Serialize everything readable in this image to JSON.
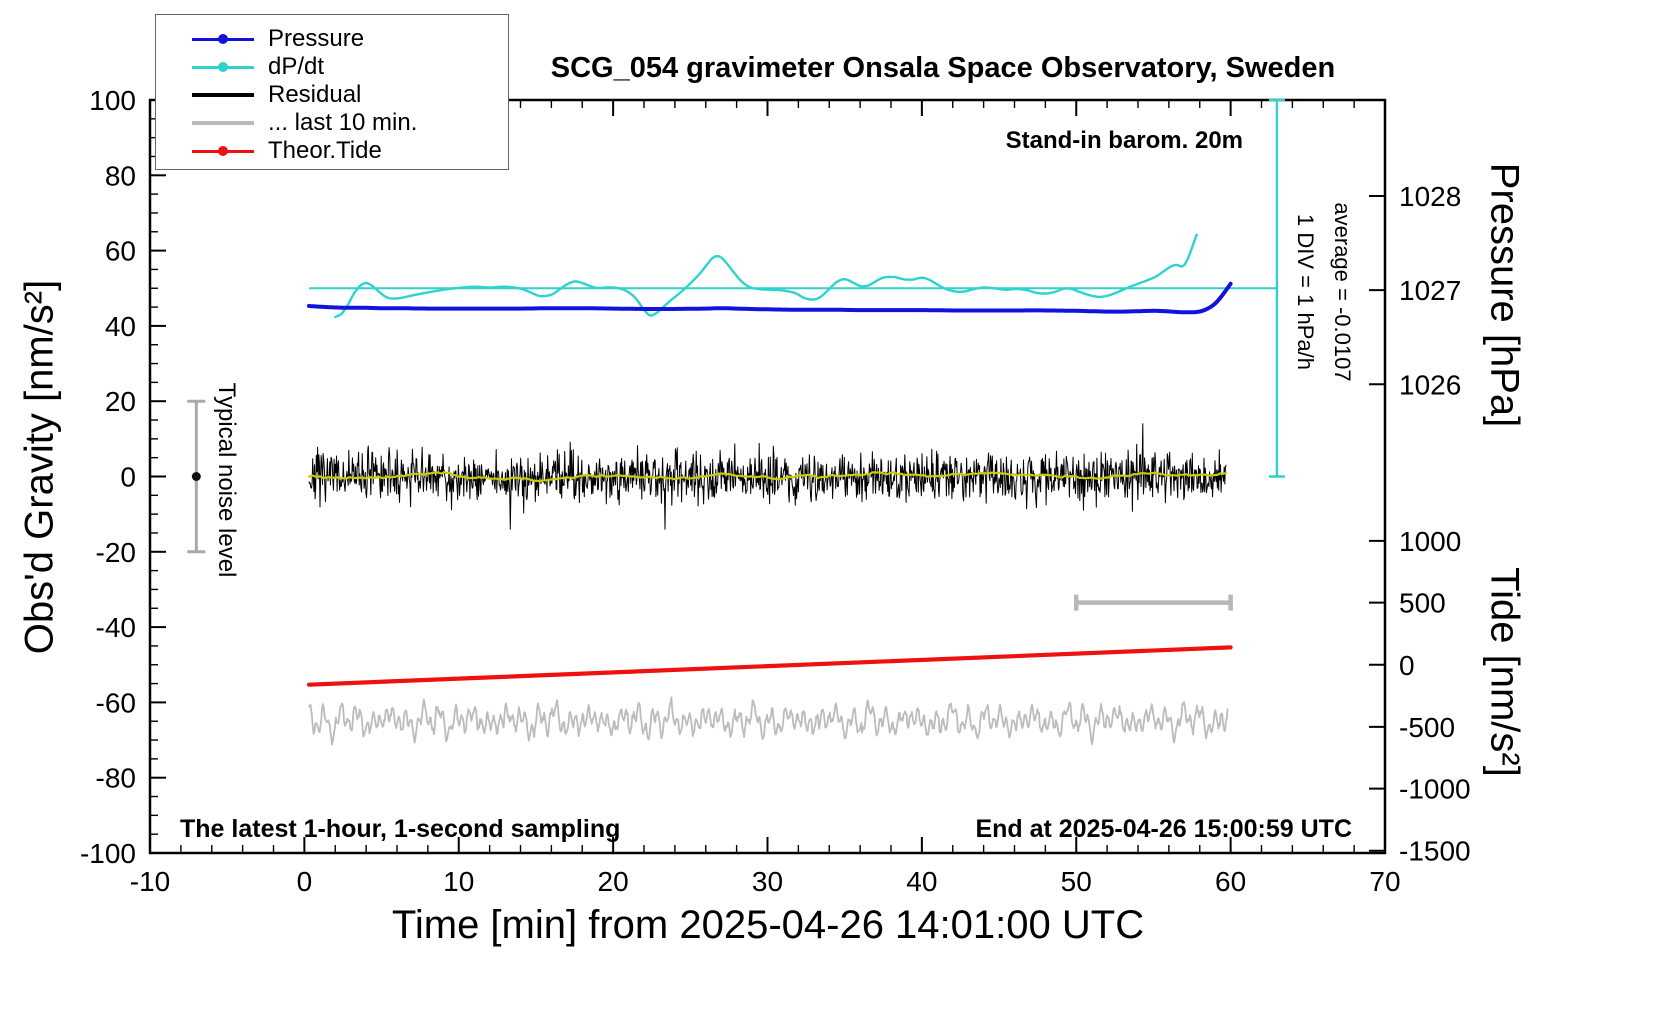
{
  "title": "SCG_054 gravimeter Onsala Space Observatory, Sweden",
  "annotations": {
    "barometer": "Stand-in barom. 20m",
    "sampling": "The latest 1-hour, 1-second sampling",
    "end_time": "End at 2025-04-26 15:00:59 UTC",
    "div_scale": "1 DIV = 1 hPa/h",
    "average": "average = -0.0107",
    "noise_label": "Typical noise level"
  },
  "axes": {
    "x": {
      "label": "Time [min] from 2025-04-26 14:01:00 UTC",
      "min": -10,
      "max": 70,
      "major_ticks": [
        -10,
        0,
        10,
        20,
        30,
        40,
        50,
        60,
        70
      ],
      "minor_step": 2
    },
    "y_left": {
      "label": "Obs'd Gravity [nm/s²]",
      "min": -100,
      "max": 100,
      "major_ticks": [
        -100,
        -80,
        -60,
        -40,
        -20,
        0,
        20,
        40,
        60,
        80,
        100
      ],
      "minor_step": 5
    },
    "y_right_pressure": {
      "label": "Pressure [hPa]",
      "ticks": [
        {
          "value": "1028",
          "g": 74.5
        },
        {
          "value": "1027",
          "g": 49.5
        },
        {
          "value": "1026",
          "g": 24.5
        }
      ]
    },
    "y_right_tide": {
      "label": "Tide [nm/s²]",
      "ticks": [
        {
          "value": "1000",
          "g": -17.1
        },
        {
          "value": "500",
          "g": -33.5
        },
        {
          "value": "0",
          "g": -50.0
        },
        {
          "value": "-500",
          "g": -66.5
        },
        {
          "value": "-1000",
          "g": -82.9
        },
        {
          "value": "-1500",
          "g": -99.4
        }
      ]
    }
  },
  "legend": {
    "items": [
      {
        "label": "Pressure",
        "color": "#1212dd",
        "dot": true,
        "thick": false
      },
      {
        "label": "dP/dt",
        "color": "#2ed3cd",
        "dot": true,
        "thick": false
      },
      {
        "label": "Residual",
        "color": "#000000",
        "dot": false,
        "thick": true
      },
      {
        "label": "... last 10 min.",
        "color": "#b9b9b9",
        "dot": false,
        "thick": true
      },
      {
        "label": "Theor.Tide",
        "color": "#ee1111",
        "dot": true,
        "thick": false
      }
    ]
  },
  "chart_data": {
    "type": "line",
    "title": "SCG_054 gravimeter Onsala Space Observatory, Sweden",
    "xlabel": "Time [min] from 2025-04-26 14:01:00 UTC",
    "ylabel": "Obs'd Gravity [nm/s²]",
    "xlim": [
      -10,
      70
    ],
    "ylim": [
      -100,
      100
    ],
    "grid": false,
    "legend_position": "top-left",
    "series": [
      {
        "name": "dP/dt",
        "color": "#2ed3cd",
        "width": 2.4,
        "axis": "gravity",
        "smooth": true,
        "keypoints": [
          [
            2,
            42.4
          ],
          [
            2.4,
            43.2
          ],
          [
            2.8,
            45.5
          ],
          [
            3.2,
            48.5
          ],
          [
            3.6,
            50.6
          ],
          [
            4,
            51.4
          ],
          [
            4.4,
            50.6
          ],
          [
            4.8,
            49.2
          ],
          [
            5.2,
            47.9
          ],
          [
            5.6,
            47.3
          ],
          [
            6.2,
            47.4
          ],
          [
            7,
            48.1
          ],
          [
            8,
            48.9
          ],
          [
            9,
            49.6
          ],
          [
            10,
            50.1
          ],
          [
            11,
            50.4
          ],
          [
            12,
            50.2
          ],
          [
            13,
            50.4
          ],
          [
            14,
            49.9
          ],
          [
            14.7,
            48.8
          ],
          [
            15.3,
            47.9
          ],
          [
            16,
            48.3
          ],
          [
            16.5,
            49.6
          ],
          [
            17,
            51.0
          ],
          [
            17.5,
            51.8
          ],
          [
            18,
            51.4
          ],
          [
            18.5,
            50.6
          ],
          [
            19,
            50.1
          ],
          [
            19.6,
            50.2
          ],
          [
            20.2,
            50.1
          ],
          [
            20.8,
            49.4
          ],
          [
            21.4,
            47.6
          ],
          [
            22,
            44.3
          ],
          [
            22.4,
            42.8
          ],
          [
            22.8,
            43.4
          ],
          [
            23.3,
            45.2
          ],
          [
            23.8,
            47.0
          ],
          [
            24.4,
            49.0
          ],
          [
            25,
            51.3
          ],
          [
            25.6,
            53.8
          ],
          [
            26.1,
            56.4
          ],
          [
            26.5,
            58.2
          ],
          [
            26.9,
            58.4
          ],
          [
            27.3,
            56.9
          ],
          [
            27.8,
            54.3
          ],
          [
            28.3,
            51.9
          ],
          [
            28.8,
            50.4
          ],
          [
            29.4,
            49.8
          ],
          [
            30.2,
            49.6
          ],
          [
            31,
            49.4
          ],
          [
            31.8,
            48.7
          ],
          [
            32.4,
            47.4
          ],
          [
            33,
            47.0
          ],
          [
            33.5,
            47.9
          ],
          [
            34,
            49.8
          ],
          [
            34.5,
            51.7
          ],
          [
            35,
            52.4
          ],
          [
            35.5,
            51.6
          ],
          [
            36,
            50.6
          ],
          [
            36.5,
            50.7
          ],
          [
            37,
            51.8
          ],
          [
            37.5,
            52.8
          ],
          [
            38.2,
            53.0
          ],
          [
            38.8,
            52.4
          ],
          [
            39.4,
            52.3
          ],
          [
            40,
            52.8
          ],
          [
            40.5,
            52.2
          ],
          [
            41,
            51.0
          ],
          [
            41.5,
            49.9
          ],
          [
            42.1,
            49.2
          ],
          [
            42.7,
            49.1
          ],
          [
            43.3,
            49.7
          ],
          [
            44,
            50.2
          ],
          [
            44.7,
            50.0
          ],
          [
            45.4,
            49.6
          ],
          [
            46.1,
            49.8
          ],
          [
            46.8,
            49.5
          ],
          [
            47.4,
            48.8
          ],
          [
            48,
            48.6
          ],
          [
            48.6,
            49.0
          ],
          [
            49.2,
            49.9
          ],
          [
            49.7,
            49.8
          ],
          [
            50.3,
            48.9
          ],
          [
            50.9,
            48.1
          ],
          [
            51.5,
            47.7
          ],
          [
            52.1,
            48.1
          ],
          [
            52.7,
            49.0
          ],
          [
            53.3,
            50.1
          ],
          [
            54,
            51.2
          ],
          [
            54.6,
            52.1
          ],
          [
            55.2,
            53.2
          ],
          [
            55.8,
            54.9
          ],
          [
            56.2,
            55.9
          ],
          [
            56.5,
            56.2
          ],
          [
            56.8,
            55.8
          ],
          [
            57,
            56.2
          ],
          [
            57.2,
            57.6
          ],
          [
            57.4,
            59.6
          ],
          [
            57.6,
            62.0
          ],
          [
            57.8,
            64.2
          ]
        ]
      },
      {
        "name": "Pressure",
        "color": "#1212dd",
        "width": 4,
        "axis": "gravity",
        "smooth": true,
        "keypoints": [
          [
            0.3,
            45.3
          ],
          [
            1,
            45.1
          ],
          [
            2,
            44.9
          ],
          [
            3,
            44.8
          ],
          [
            4,
            44.8
          ],
          [
            5,
            44.7
          ],
          [
            6,
            44.7
          ],
          [
            8,
            44.6
          ],
          [
            10,
            44.6
          ],
          [
            12,
            44.6
          ],
          [
            14,
            44.6
          ],
          [
            16,
            44.7
          ],
          [
            18,
            44.7
          ],
          [
            20,
            44.6
          ],
          [
            22,
            44.5
          ],
          [
            24,
            44.5
          ],
          [
            26,
            44.6
          ],
          [
            27,
            44.7
          ],
          [
            28,
            44.6
          ],
          [
            30,
            44.4
          ],
          [
            32,
            44.3
          ],
          [
            34,
            44.3
          ],
          [
            36,
            44.2
          ],
          [
            38,
            44.2
          ],
          [
            40,
            44.2
          ],
          [
            42,
            44.1
          ],
          [
            44,
            44.1
          ],
          [
            46,
            44.1
          ],
          [
            48,
            44.1
          ],
          [
            50,
            44.0
          ],
          [
            51,
            43.9
          ],
          [
            52,
            43.8
          ],
          [
            53,
            43.8
          ],
          [
            54,
            43.9
          ],
          [
            55,
            44.0
          ],
          [
            55.8,
            43.9
          ],
          [
            56.5,
            43.7
          ],
          [
            57.2,
            43.6
          ],
          [
            57.8,
            43.7
          ],
          [
            58.3,
            44.2
          ],
          [
            58.8,
            45.3
          ],
          [
            59.2,
            46.8
          ],
          [
            59.6,
            48.9
          ],
          [
            60,
            51.2
          ]
        ]
      },
      {
        "name": "Residual",
        "color": "#000000",
        "width": 1,
        "axis": "gravity",
        "gen": "residual",
        "x0": 0.3,
        "x1": 59.7,
        "n": 1500,
        "seed": 7,
        "std": 3.3,
        "spike_prob": 0.012,
        "spike_mult": 2.4,
        "clip": 14
      },
      {
        "name": "Residual smoothed",
        "color": "#c9cb06",
        "width": 2.2,
        "axis": "gravity",
        "gen": "smoothed",
        "x0": 0.3,
        "x1": 59.7,
        "n": 320,
        "seed": 21,
        "std": 2.4,
        "window": 9
      },
      {
        "name": "... last 10 min.",
        "color": "#bcbcbc",
        "width": 1.8,
        "axis": "gravity",
        "gen": "osc",
        "x0": 0.3,
        "x1": 59.8,
        "n": 1200,
        "seed": 12,
        "base": -64.8,
        "jitter": 0.5,
        "harmonics": [
          {
            "period": 1.07,
            "amp": 3.0,
            "phase": 0.3,
            "am_period": 6.9,
            "am_depth": 0.35
          },
          {
            "period": 0.41,
            "amp": 1.9,
            "phase": 2.1
          },
          {
            "period": 2.6,
            "amp": 1.1,
            "phase": 0.8
          }
        ]
      },
      {
        "name": "Theor.Tide",
        "color": "#ee1111",
        "width": 4.2,
        "axis": "gravity",
        "keypoints": [
          [
            0.3,
            -55.3
          ],
          [
            60,
            -45.4
          ]
        ]
      }
    ],
    "extras": {
      "ref_line": {
        "g": 50,
        "x0": 0.3,
        "x1": 63,
        "color": "#35d0ca",
        "width": 2
      },
      "div_indicator": {
        "x": 63,
        "g0": 0,
        "g1": 100,
        "cap": 8,
        "color": "#35d0ca",
        "width": 2.4
      },
      "noise_bar": {
        "x": -7,
        "g0": -20,
        "g1": 20,
        "cap": 9,
        "color": "#a9a9a9",
        "width": 3,
        "dot_g": 0,
        "dot_color": "#111111",
        "dot_r": 4.5
      },
      "scale_bar": {
        "g": -33.5,
        "x0": 50,
        "x1": 60,
        "cap": 8,
        "color": "#b8b8b8",
        "width": 4.5
      }
    }
  }
}
